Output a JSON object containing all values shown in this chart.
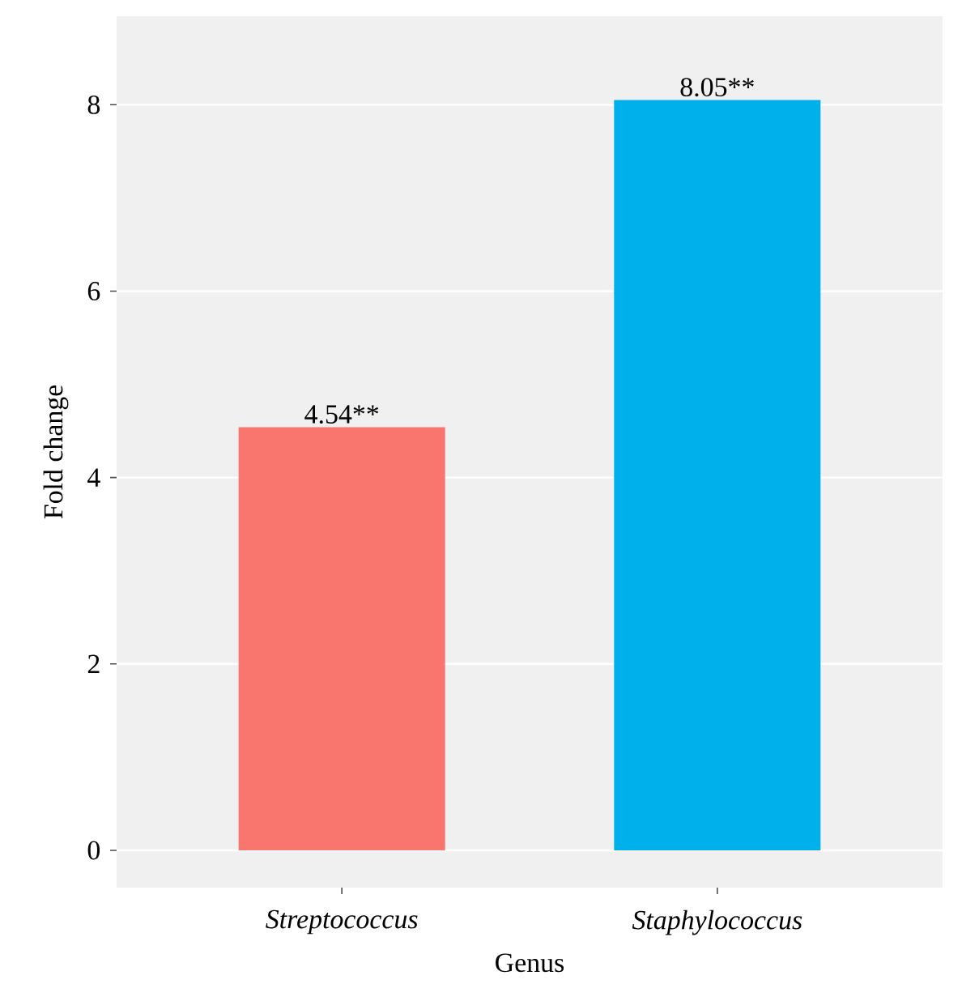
{
  "chart_data": {
    "type": "bar",
    "xlabel": "Genus",
    "ylabel": "Fold change",
    "categories": [
      "Streptococcus",
      "Staphylococcus"
    ],
    "values": [
      4.54,
      8.05
    ],
    "colors": [
      "#f8766d",
      "#00b0eb"
    ],
    "value_labels": [
      "4.54**",
      "8.05**"
    ],
    "ylim": [
      -0.4,
      8.95
    ],
    "yticks": [
      0,
      2,
      4,
      6,
      8
    ],
    "grid": "y"
  }
}
